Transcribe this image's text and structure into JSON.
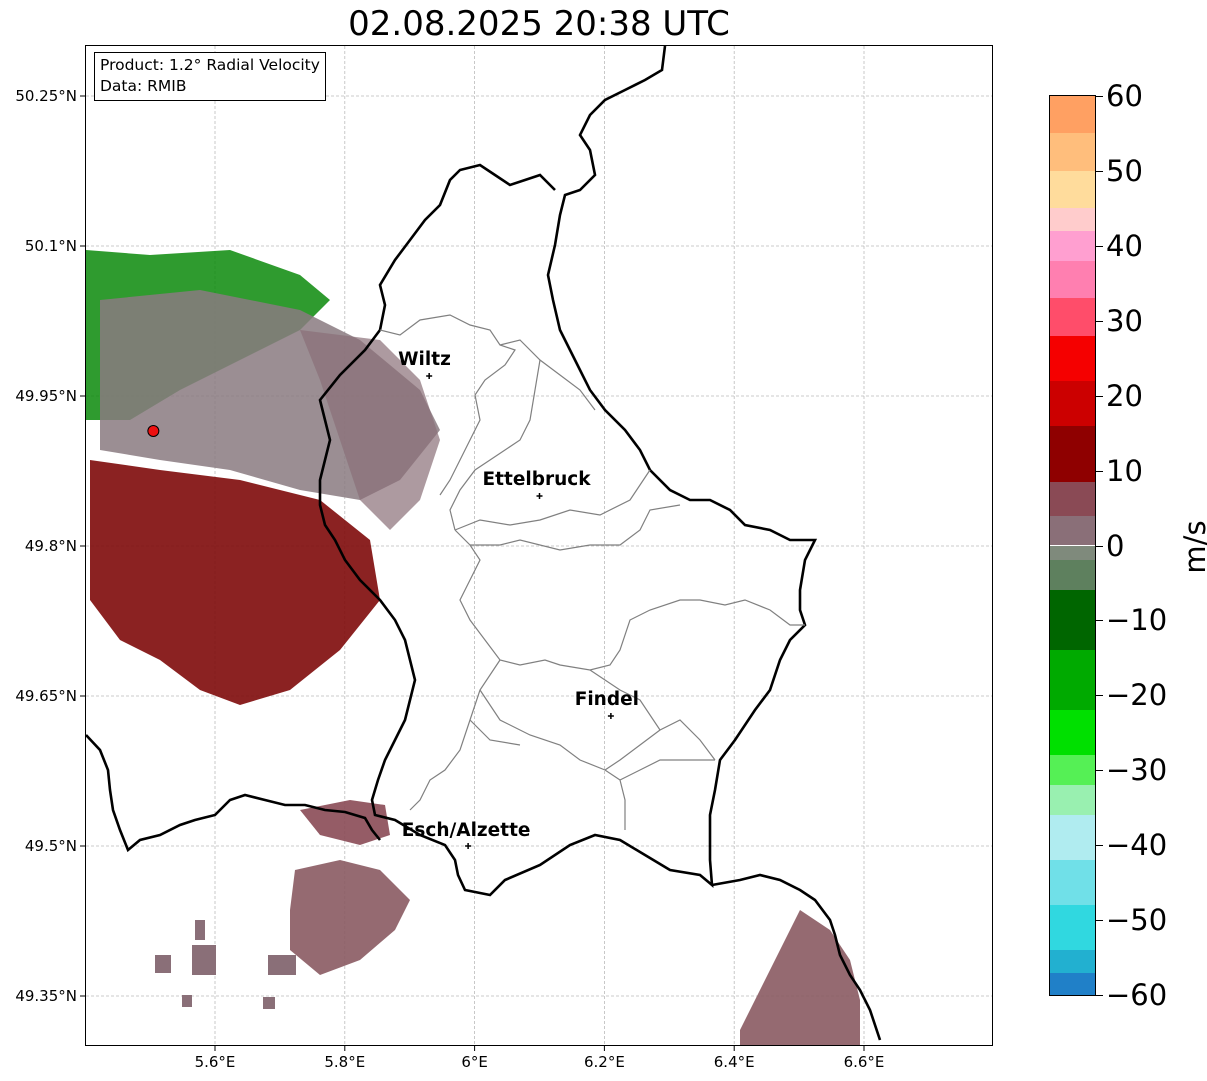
{
  "title": "02.08.2025 20:38 UTC",
  "info_box": {
    "product": "Product: 1.2° Radial Velocity",
    "data": "Data: RMIB"
  },
  "axes": {
    "lat_ticks": [
      "50.25°N",
      "50.1°N",
      "49.95°N",
      "49.8°N",
      "49.65°N",
      "49.5°N",
      "49.35°N"
    ],
    "lon_ticks": [
      "5.6°E",
      "5.8°E",
      "6°E",
      "6.2°E",
      "6.4°E",
      "6.6°E"
    ],
    "lat_range": [
      49.3,
      50.3
    ],
    "lon_range": [
      5.4,
      6.8
    ],
    "grid": true
  },
  "cities": [
    {
      "name": "Wiltz",
      "lon": 5.93,
      "lat": 49.97
    },
    {
      "name": "Ettelbruck",
      "lon": 6.1,
      "lat": 49.85
    },
    {
      "name": "Findel",
      "lon": 6.21,
      "lat": 49.63
    },
    {
      "name": "Esch/Alzette",
      "lon": 5.99,
      "lat": 49.5
    }
  ],
  "radar_site": {
    "lon": 5.505,
    "lat": 49.915,
    "color": "#ee1111"
  },
  "colorbar": {
    "unit": "m/s",
    "min": -60,
    "max": 60,
    "ticks": [
      "60",
      "50",
      "40",
      "30",
      "20",
      "10",
      "0",
      "−10",
      "−20",
      "−30",
      "−40",
      "−50",
      "−60"
    ],
    "bands": [
      {
        "from": 55,
        "to": 60,
        "color": "#ffa062"
      },
      {
        "from": 50,
        "to": 55,
        "color": "#ffbe7c"
      },
      {
        "from": 45,
        "to": 50,
        "color": "#ffdc9c"
      },
      {
        "from": 42,
        "to": 45,
        "color": "#ffcccc"
      },
      {
        "from": 38,
        "to": 42,
        "color": "#ff9fd0"
      },
      {
        "from": 33,
        "to": 38,
        "color": "#ff7fb0"
      },
      {
        "from": 28,
        "to": 33,
        "color": "#ff4d6a"
      },
      {
        "from": 22,
        "to": 28,
        "color": "#f50000"
      },
      {
        "from": 16,
        "to": 22,
        "color": "#cc0000"
      },
      {
        "from": 8.5,
        "to": 16,
        "color": "#8f0000"
      },
      {
        "from": 4,
        "to": 8.5,
        "color": "#8a4a55"
      },
      {
        "from": 0,
        "to": 4,
        "color": "#8a6f78"
      },
      {
        "from": -2,
        "to": 0,
        "color": "#7f8a7c"
      },
      {
        "from": -6,
        "to": -2,
        "color": "#5e805e"
      },
      {
        "from": -14,
        "to": -6,
        "color": "#006600"
      },
      {
        "from": -22,
        "to": -14,
        "color": "#00aa00"
      },
      {
        "from": -28,
        "to": -22,
        "color": "#00e000"
      },
      {
        "from": -32,
        "to": -28,
        "color": "#55f055"
      },
      {
        "from": -36,
        "to": -32,
        "color": "#99f0b0"
      },
      {
        "from": -42,
        "to": -36,
        "color": "#b0ecf0"
      },
      {
        "from": -48,
        "to": -42,
        "color": "#70e0e8"
      },
      {
        "from": -54,
        "to": -48,
        "color": "#30d8e0"
      },
      {
        "from": -57,
        "to": -54,
        "color": "#22b0d0"
      },
      {
        "from": -60,
        "to": -57,
        "color": "#2080c8"
      }
    ]
  }
}
